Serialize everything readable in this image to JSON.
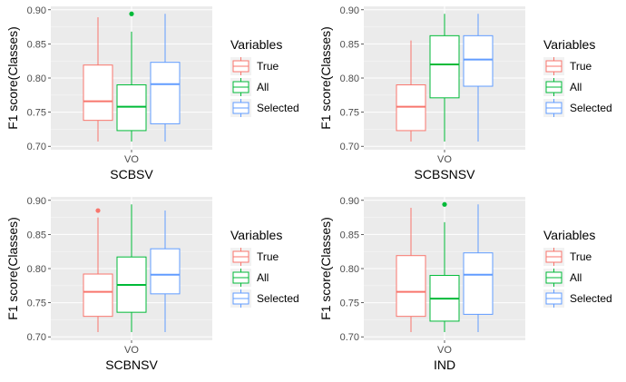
{
  "chart_data": [
    {
      "type": "boxplot",
      "xlabel": "SCBSV",
      "ylabel": "F1 score(Classes)",
      "categories": [
        "VO"
      ],
      "ylim": [
        0.695,
        0.905
      ],
      "yticks": [
        0.7,
        0.75,
        0.8,
        0.85,
        0.9
      ],
      "legend": {
        "title": "Variables",
        "position": "right"
      },
      "series": [
        {
          "name": "True",
          "color": "#F8766D",
          "min": 0.707,
          "q1": 0.738,
          "median": 0.766,
          "q3": 0.819,
          "max": 0.889,
          "outliers": []
        },
        {
          "name": "All",
          "color": "#00BA38",
          "min": 0.707,
          "q1": 0.723,
          "median": 0.758,
          "q3": 0.79,
          "max": 0.868,
          "outliers": [
            0.894
          ]
        },
        {
          "name": "Selected",
          "color": "#619CFF",
          "min": 0.707,
          "q1": 0.733,
          "median": 0.791,
          "q3": 0.823,
          "max": 0.894,
          "outliers": []
        }
      ]
    },
    {
      "type": "boxplot",
      "xlabel": "SCBSNSV",
      "ylabel": "F1 score(Classes)",
      "categories": [
        "VO"
      ],
      "ylim": [
        0.695,
        0.905
      ],
      "yticks": [
        0.7,
        0.75,
        0.8,
        0.85,
        0.9
      ],
      "legend": {
        "title": "Variables",
        "position": "right"
      },
      "series": [
        {
          "name": "True",
          "color": "#F8766D",
          "min": 0.707,
          "q1": 0.723,
          "median": 0.758,
          "q3": 0.79,
          "max": 0.855,
          "outliers": []
        },
        {
          "name": "All",
          "color": "#00BA38",
          "min": 0.707,
          "q1": 0.771,
          "median": 0.82,
          "q3": 0.862,
          "max": 0.894,
          "outliers": []
        },
        {
          "name": "Selected",
          "color": "#619CFF",
          "min": 0.707,
          "q1": 0.788,
          "median": 0.827,
          "q3": 0.862,
          "max": 0.894,
          "outliers": []
        }
      ]
    },
    {
      "type": "boxplot",
      "xlabel": "SCBNSV",
      "ylabel": "F1 score(Classes)",
      "categories": [
        "VO"
      ],
      "ylim": [
        0.695,
        0.905
      ],
      "yticks": [
        0.7,
        0.75,
        0.8,
        0.85,
        0.9
      ],
      "legend": {
        "title": "Variables",
        "position": "right"
      },
      "series": [
        {
          "name": "True",
          "color": "#F8766D",
          "min": 0.707,
          "q1": 0.73,
          "median": 0.766,
          "q3": 0.792,
          "max": 0.875,
          "outliers": [
            0.885
          ]
        },
        {
          "name": "All",
          "color": "#00BA38",
          "min": 0.707,
          "q1": 0.736,
          "median": 0.776,
          "q3": 0.817,
          "max": 0.894,
          "outliers": []
        },
        {
          "name": "Selected",
          "color": "#619CFF",
          "min": 0.707,
          "q1": 0.763,
          "median": 0.791,
          "q3": 0.829,
          "max": 0.885,
          "outliers": []
        }
      ]
    },
    {
      "type": "boxplot",
      "xlabel": "IND",
      "ylabel": "F1 score(Classes)",
      "categories": [
        "VO"
      ],
      "ylim": [
        0.695,
        0.905
      ],
      "yticks": [
        0.7,
        0.75,
        0.8,
        0.85,
        0.9
      ],
      "legend": {
        "title": "Variables",
        "position": "right"
      },
      "series": [
        {
          "name": "True",
          "color": "#F8766D",
          "min": 0.707,
          "q1": 0.73,
          "median": 0.766,
          "q3": 0.819,
          "max": 0.889,
          "outliers": []
        },
        {
          "name": "All",
          "color": "#00BA38",
          "min": 0.707,
          "q1": 0.723,
          "median": 0.756,
          "q3": 0.79,
          "max": 0.868,
          "outliers": [
            0.894
          ]
        },
        {
          "name": "Selected",
          "color": "#619CFF",
          "min": 0.707,
          "q1": 0.733,
          "median": 0.791,
          "q3": 0.823,
          "max": 0.894,
          "outliers": []
        }
      ]
    }
  ]
}
